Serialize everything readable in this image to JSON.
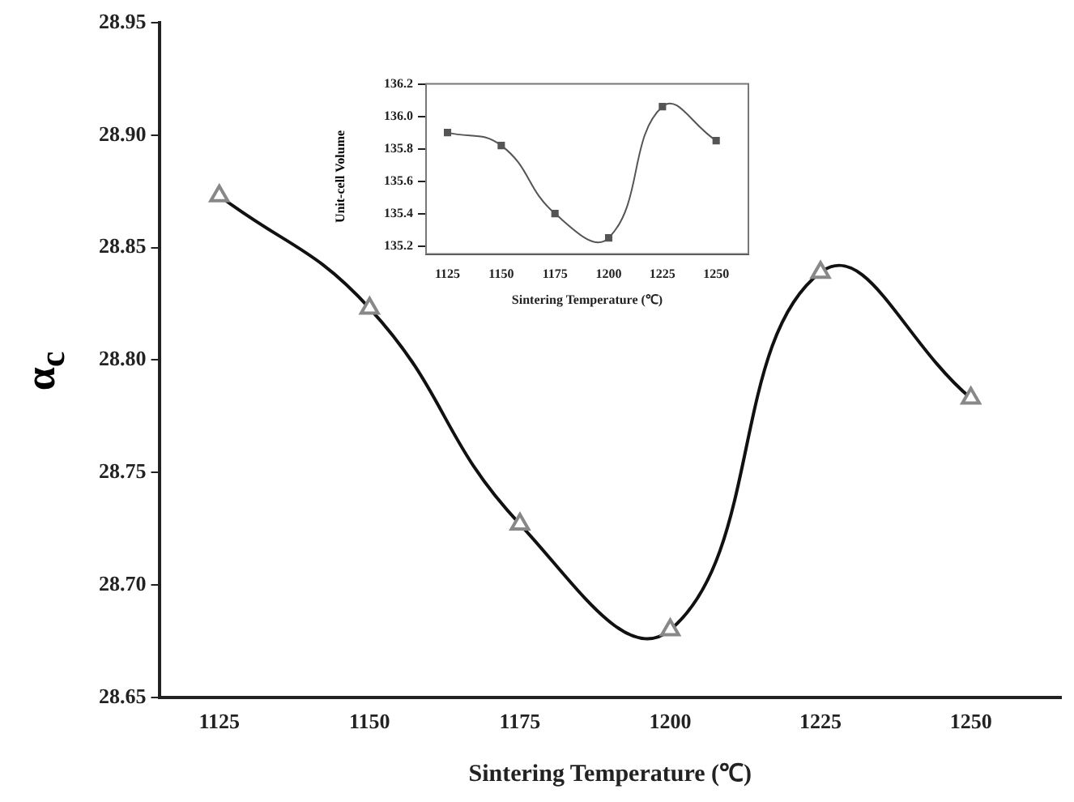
{
  "chart_data": [
    {
      "type": "line",
      "xlabel": "Sintering Temperature (℃)",
      "ylabel": "α$_{c}$",
      "x": [
        1125,
        1150,
        1175,
        1200,
        1225,
        1250
      ],
      "series": [
        {
          "color": "#111111",
          "values": [
            28.873,
            28.823,
            28.727,
            28.68,
            28.839,
            28.783
          ]
        }
      ],
      "xlim": [
        1115,
        1265
      ],
      "xticks": [
        1125,
        1150,
        1175,
        1200,
        1225,
        1250
      ],
      "ylim": [
        28.65,
        28.95
      ],
      "yticks": [
        28.65,
        {
          "value": 28.7,
          "label": "28.70"
        },
        28.75,
        {
          "value": 28.8,
          "label": "28.80"
        },
        28.85,
        {
          "value": 28.9,
          "label": "28.90"
        },
        28.95
      ],
      "marker": "triangle",
      "grid": false,
      "legend": false
    },
    {
      "type": "line",
      "xlabel": "Sintering Temperature (℃)",
      "ylabel": "Unit-cell Volume",
      "x": [
        1125,
        1150,
        1175,
        1200,
        1225,
        1250
      ],
      "series": [
        {
          "color": "#555555",
          "values": [
            135.9,
            135.82,
            135.4,
            135.25,
            136.06,
            135.85
          ]
        }
      ],
      "xlim": [
        1115,
        1265
      ],
      "xticks": [
        1125,
        1150,
        1175,
        1200,
        1225,
        1250
      ],
      "ylim": [
        135.15,
        136.2
      ],
      "yticks": [
        135.2,
        135.4,
        135.6,
        135.8,
        {
          "value": 136,
          "label": "136.0"
        },
        136.2
      ],
      "marker": "square",
      "grid": false,
      "legend": false
    }
  ]
}
